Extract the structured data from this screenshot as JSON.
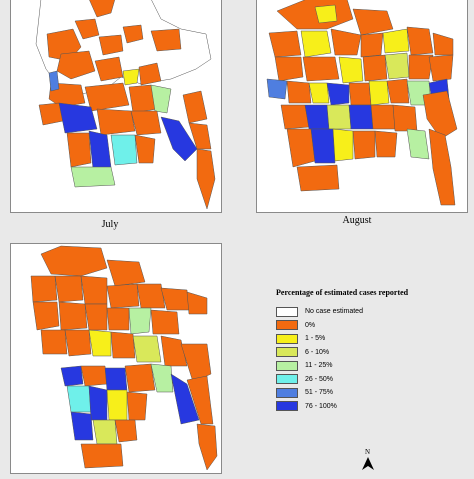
{
  "maps": [
    {
      "caption": "July"
    },
    {
      "caption": "August"
    },
    {
      "caption": ""
    }
  ],
  "legend": {
    "title": "Percentage of estimated cases reported",
    "items": [
      {
        "label": "No case estimated",
        "color": "#ffffff"
      },
      {
        "label": "0%",
        "color": "#f26a10"
      },
      {
        "label": "1 - 5%",
        "color": "#f7ef1a"
      },
      {
        "label": "6 - 10%",
        "color": "#d9e85a"
      },
      {
        "label": "11 - 25%",
        "color": "#b7f0a2"
      },
      {
        "label": "26 - 50%",
        "color": "#6ff0ea"
      },
      {
        "label": "51 - 75%",
        "color": "#4f7ee0"
      },
      {
        "label": "76 - 100%",
        "color": "#2738e0"
      }
    ]
  },
  "north_arrow": {
    "label": "N"
  },
  "colors": {
    "none": "#ffffff",
    "zero": "#f26a10",
    "low": "#f7ef1a",
    "six": "#d9e85a",
    "eleven": "#b7f0a2",
    "twentysix": "#6ff0ea",
    "fiftyone": "#4f7ee0",
    "seventysix": "#2738e0",
    "border": "#555555"
  }
}
